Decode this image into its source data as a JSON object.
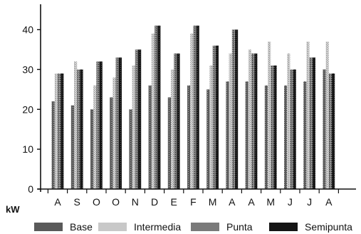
{
  "chart_data": {
    "type": "bar",
    "categories": [
      "A",
      "S",
      "O",
      "O",
      "N",
      "D",
      "E",
      "F",
      "M",
      "A",
      "A",
      "M",
      "J",
      "J",
      "A"
    ],
    "series": [
      {
        "name": "Base",
        "color": "#6f6f6f",
        "values": [
          22,
          21,
          20,
          23,
          20,
          26,
          23,
          26,
          25,
          27,
          27,
          26,
          26,
          27,
          30
        ]
      },
      {
        "name": "Intermedia",
        "color": "#bdbdbd",
        "values": [
          29,
          32,
          26,
          28,
          31,
          39,
          30,
          39,
          31,
          34,
          35,
          37,
          34,
          37,
          37
        ]
      },
      {
        "name": "Punta",
        "color": "#8e8e8e",
        "values": [
          29,
          30,
          32,
          33,
          35,
          41,
          34,
          41,
          36,
          40,
          34,
          31,
          30,
          33,
          29
        ]
      },
      {
        "name": "Semipunta",
        "color": "#1e1e1e",
        "values": [
          29,
          30,
          32,
          33,
          35,
          41,
          34,
          41,
          36,
          40,
          34,
          31,
          30,
          33,
          29
        ]
      }
    ],
    "ylabel": "kW",
    "ylim": [
      0,
      46
    ],
    "yticks": [
      0,
      10,
      20,
      30,
      40
    ],
    "grid": false,
    "legend": "bottom"
  }
}
